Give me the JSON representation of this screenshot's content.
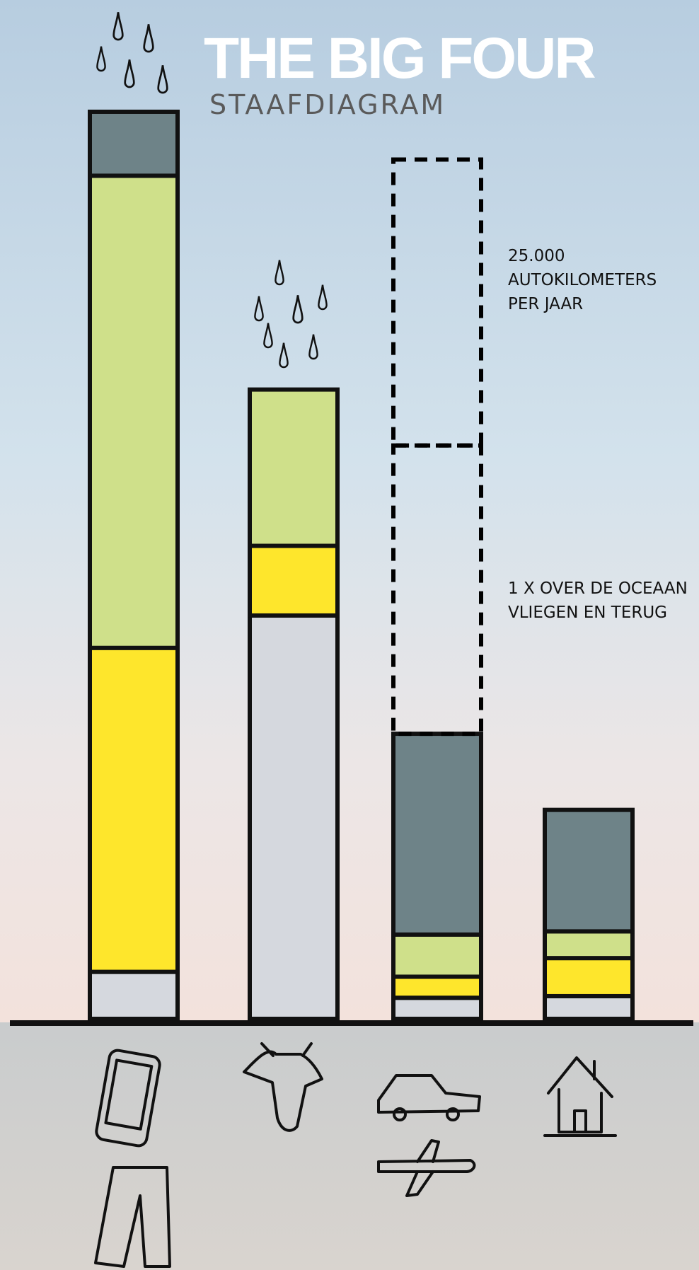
{
  "chart_data": {
    "type": "bar",
    "stacked": true,
    "title": "THE BIG FOUR",
    "subtitle": "STAAFDIAGRAM",
    "categories": [
      null,
      null,
      null,
      null
    ],
    "series": [
      {
        "color": "#d5d8de",
        "values": [
          58,
          498,
          26,
          28
        ]
      },
      {
        "color": "#fee62c",
        "values": [
          400,
          86,
          26,
          47
        ]
      },
      {
        "color": "#cfe08a",
        "values": [
          583,
          193,
          52,
          33
        ]
      },
      {
        "color": "#6e8388",
        "values": [
          79,
          0,
          248,
          150
        ]
      },
      {
        "color": "#000000",
        "dashed": true,
        "values": [
          0,
          0,
          356,
          0
        ]
      },
      {
        "color": "#000000",
        "dashed": true,
        "values": [
          0,
          0,
          353,
          0
        ]
      }
    ],
    "ylim": [
      0,
      1258
    ],
    "annotations": [
      {
        "lines": [
          "25.000",
          "AUTOKILOMETERS",
          "PER JAAR"
        ]
      },
      {
        "lines": [
          "1 X OVER DE OCEAAN",
          "VLIEGEN EN TERUG"
        ]
      }
    ]
  }
}
